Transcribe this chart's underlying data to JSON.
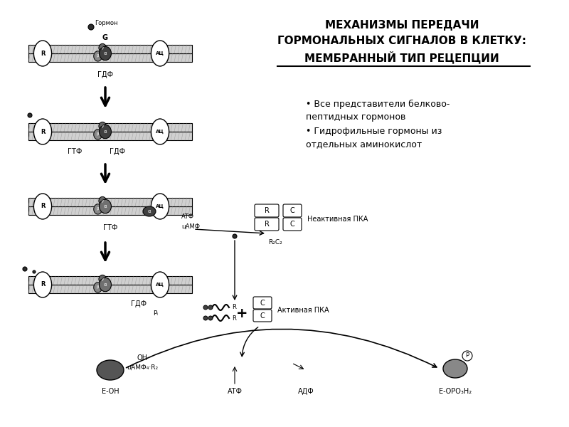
{
  "title_line1": "МЕХАНИЗМЫ ПЕРЕДАЧИ",
  "title_line2": "ГОРМОНАЛЬНЫХ СИГНАЛОВ В КЛЕТКУ:",
  "title_line3": "МЕМБРАННЫЙ ТИП РЕЦЕПЦИИ",
  "bullet1_line1": "• Все представители белково-",
  "bullet1_line2": "пептидных гормонов",
  "bullet2_line1": "• Гидрофильные гормоны из",
  "bullet2_line2": "отдельных аминокислот",
  "bg_color": "#ffffff",
  "line_color": "#000000",
  "dark_fill": "#2d2d2d"
}
